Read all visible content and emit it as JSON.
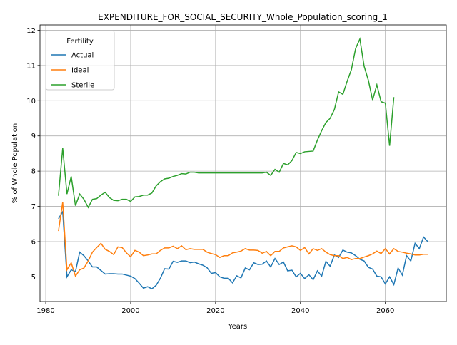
{
  "chart_data": {
    "type": "line",
    "title": "EXPENDITURE_FOR_SOCIAL_SECURITY_Whole_Population_scoring_1",
    "xlabel": "Years",
    "ylabel": "% of Whole Population",
    "legend_title": "Fertility",
    "legend": "upper left",
    "grid": true,
    "x": [
      1983,
      1984,
      1985,
      1986,
      1987,
      1988,
      1989,
      1990,
      1991,
      1992,
      1993,
      1994,
      1995,
      1996,
      1997,
      1998,
      1999,
      2000,
      2001,
      2002,
      2003,
      2004,
      2005,
      2006,
      2007,
      2008,
      2009,
      2010,
      2011,
      2012,
      2013,
      2014,
      2015,
      2016,
      2017,
      2018,
      2019,
      2020,
      2021,
      2022,
      2023,
      2024,
      2025,
      2026,
      2027,
      2028,
      2029,
      2030,
      2031,
      2032,
      2033,
      2034,
      2035,
      2036,
      2037,
      2038,
      2039,
      2040,
      2041,
      2042,
      2043,
      2044,
      2045,
      2046,
      2047,
      2048,
      2049,
      2050,
      2051,
      2052,
      2053,
      2054,
      2055,
      2056,
      2057,
      2058,
      2059,
      2060,
      2061,
      2062,
      2063,
      2064,
      2065,
      2066,
      2067,
      2068,
      2069,
      2070
    ],
    "series": [
      {
        "name": "Actual",
        "color": "#1f77b4",
        "values": [
          6.65,
          6.85,
          5.0,
          5.2,
          5.15,
          5.7,
          5.6,
          5.45,
          5.28,
          5.28,
          5.18,
          5.08,
          5.09,
          5.09,
          5.08,
          5.08,
          5.05,
          5.02,
          4.95,
          4.82,
          4.68,
          4.72,
          4.66,
          4.76,
          4.96,
          5.23,
          5.22,
          5.44,
          5.41,
          5.45,
          5.45,
          5.4,
          5.42,
          5.37,
          5.33,
          5.26,
          5.1,
          5.12,
          5.0,
          4.96,
          4.96,
          4.83,
          5.03,
          4.97,
          5.25,
          5.2,
          5.4,
          5.35,
          5.36,
          5.45,
          5.28,
          5.52,
          5.35,
          5.42,
          5.17,
          5.19,
          5.0,
          5.1,
          4.95,
          5.06,
          4.92,
          5.17,
          5.02,
          5.44,
          5.3,
          5.62,
          5.55,
          5.76,
          5.7,
          5.68,
          5.6,
          5.5,
          5.45,
          5.27,
          5.22,
          5.02,
          5.0,
          4.8,
          5.0,
          4.78,
          5.25,
          5.05,
          5.6,
          5.45,
          5.95,
          5.8,
          6.13,
          6.0
        ]
      },
      {
        "name": "Ideal",
        "color": "#ff7f0e",
        "values": [
          6.3,
          7.12,
          5.2,
          5.4,
          5.02,
          5.2,
          5.25,
          5.45,
          5.7,
          5.83,
          5.95,
          5.78,
          5.72,
          5.63,
          5.85,
          5.83,
          5.68,
          5.57,
          5.75,
          5.7,
          5.6,
          5.62,
          5.65,
          5.65,
          5.75,
          5.82,
          5.82,
          5.87,
          5.8,
          5.88,
          5.77,
          5.8,
          5.78,
          5.78,
          5.78,
          5.7,
          5.66,
          5.63,
          5.55,
          5.6,
          5.6,
          5.68,
          5.7,
          5.73,
          5.8,
          5.76,
          5.76,
          5.75,
          5.67,
          5.72,
          5.6,
          5.72,
          5.72,
          5.82,
          5.85,
          5.88,
          5.85,
          5.75,
          5.83,
          5.65,
          5.8,
          5.75,
          5.8,
          5.7,
          5.63,
          5.6,
          5.6,
          5.52,
          5.55,
          5.49,
          5.52,
          5.52,
          5.56,
          5.6,
          5.65,
          5.73,
          5.66,
          5.8,
          5.65,
          5.8,
          5.72,
          5.7,
          5.67,
          5.65,
          5.62,
          5.62,
          5.64,
          5.64
        ]
      },
      {
        "name": "Sterile",
        "color": "#2ca02c",
        "values": [
          7.3,
          8.65,
          7.35,
          7.85,
          7.02,
          7.35,
          7.2,
          6.97,
          7.2,
          7.22,
          7.32,
          7.4,
          7.25,
          7.17,
          7.16,
          7.2,
          7.2,
          7.14,
          7.27,
          7.28,
          7.32,
          7.32,
          7.38,
          7.58,
          7.7,
          7.78,
          7.8,
          7.85,
          7.88,
          7.93,
          7.92,
          7.97,
          7.97,
          7.95,
          7.95,
          7.95,
          7.95,
          7.95,
          7.95,
          7.95,
          7.95,
          7.95,
          7.95,
          7.95,
          7.95,
          7.95,
          7.95,
          7.95,
          7.95,
          7.97,
          7.88,
          8.05,
          7.97,
          8.22,
          8.18,
          8.3,
          8.53,
          8.5,
          8.55,
          8.56,
          8.57,
          8.88,
          9.15,
          9.38,
          9.5,
          9.75,
          10.25,
          10.18,
          10.55,
          10.88,
          11.48,
          11.75,
          10.98,
          10.58,
          10.02,
          10.45,
          9.97,
          9.93,
          8.72,
          10.1,
          null,
          null,
          null,
          null,
          null,
          null,
          null,
          null
        ]
      }
    ],
    "xlim": [
      1978.65,
      2074.35
    ],
    "xticks": [
      1980,
      2000,
      2020,
      2040,
      2060
    ],
    "ylim": [
      4.3,
      12.15
    ],
    "yticks": [
      5,
      6,
      7,
      8,
      9,
      10,
      11,
      12
    ]
  }
}
